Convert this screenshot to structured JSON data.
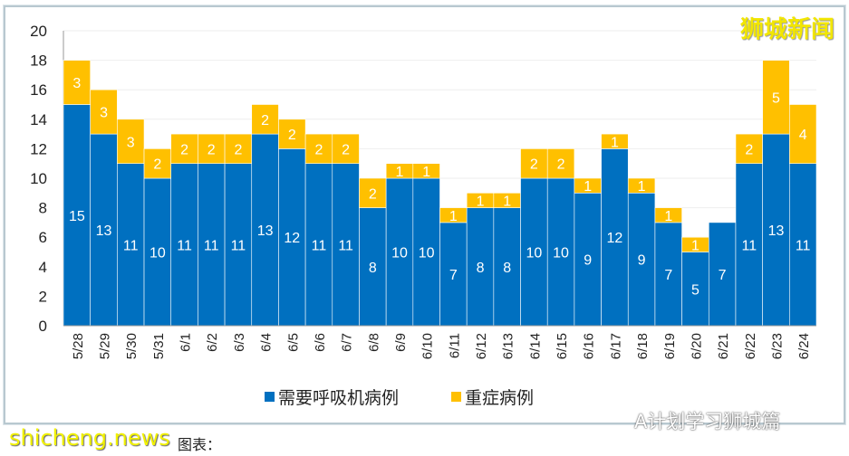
{
  "chart_data": {
    "type": "bar",
    "stacked": true,
    "categories": [
      "5/28",
      "5/29",
      "5/30",
      "5/31",
      "6/1",
      "6/2",
      "6/3",
      "6/4",
      "6/5",
      "6/6",
      "6/7",
      "6/8",
      "6/9",
      "6/10",
      "6/11",
      "6/12",
      "6/13",
      "6/14",
      "6/15",
      "6/16",
      "6/17",
      "6/18",
      "6/19",
      "6/20",
      "6/21",
      "6/22",
      "6/23",
      "6/24"
    ],
    "series": [
      {
        "name": "需要呼吸机病例",
        "color": "#0070c0",
        "values": [
          15,
          13,
          11,
          10,
          11,
          11,
          11,
          13,
          12,
          11,
          11,
          8,
          10,
          10,
          7,
          8,
          8,
          10,
          10,
          9,
          12,
          9,
          7,
          5,
          7,
          11,
          13,
          11
        ]
      },
      {
        "name": "重症病例",
        "color": "#ffc000",
        "values": [
          3,
          3,
          3,
          2,
          2,
          2,
          2,
          2,
          2,
          2,
          2,
          2,
          1,
          1,
          1,
          1,
          1,
          2,
          2,
          1,
          1,
          1,
          1,
          1,
          0,
          2,
          5,
          4
        ]
      }
    ],
    "ylim": [
      0,
      20
    ],
    "yticks": [
      "0",
      "2",
      "4",
      "6",
      "8",
      "10",
      "12",
      "14",
      "16",
      "18",
      "20"
    ],
    "legend_position": "bottom",
    "grid": true
  },
  "watermark": "狮城新闻",
  "wechat": "A计划学习狮城篇",
  "site": "shicheng.news",
  "caption": "图表："
}
